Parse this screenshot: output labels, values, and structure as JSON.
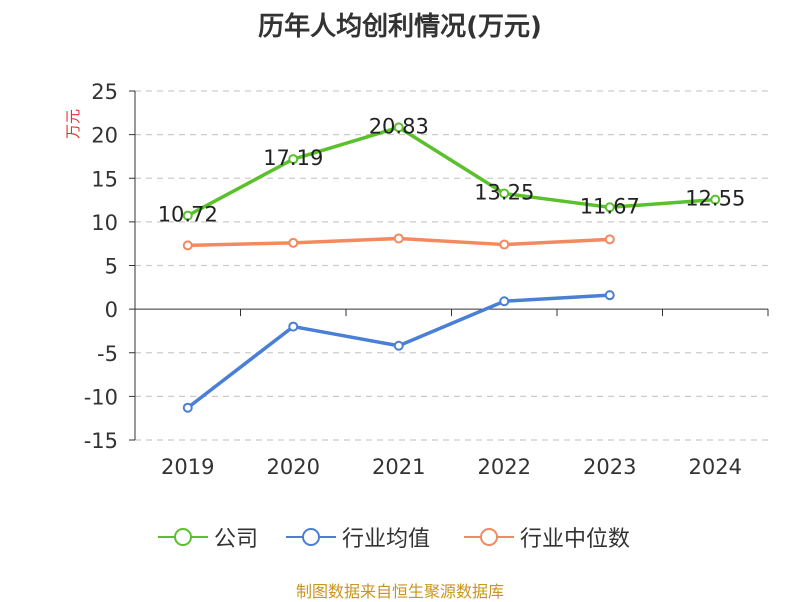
{
  "title": "历年人均创利情况(万元)",
  "source": "制图数据来自恒生聚源数据库",
  "colors": {
    "company": "#5ac02b",
    "avg": "#4a7fd6",
    "median": "#f4895f"
  },
  "chart_data": {
    "type": "line",
    "title": "历年人均创利情况(万元)",
    "ylabel": "万元",
    "xlabel": "",
    "categories": [
      "2019",
      "2020",
      "2021",
      "2022",
      "2023",
      "2024"
    ],
    "ylim": [
      -15,
      25
    ],
    "yticks": [
      25,
      20,
      15,
      10,
      5,
      0,
      -5,
      -10,
      -15
    ],
    "grid": true,
    "legend_position": "bottom",
    "series": [
      {
        "name": "公司",
        "color": "#5ac02b",
        "values": [
          10.72,
          17.19,
          20.83,
          13.25,
          11.67,
          12.55
        ],
        "labels": [
          "10.72",
          "17.19",
          "20.83",
          "13.25",
          "11.67",
          "12.55"
        ]
      },
      {
        "name": "行业均值",
        "color": "#4a7fd6",
        "values": [
          -11.3,
          -2.0,
          -4.2,
          0.9,
          1.6,
          null
        ]
      },
      {
        "name": "行业中位数",
        "color": "#f4895f",
        "values": [
          7.3,
          7.6,
          8.1,
          7.4,
          8.0,
          null
        ]
      }
    ]
  }
}
